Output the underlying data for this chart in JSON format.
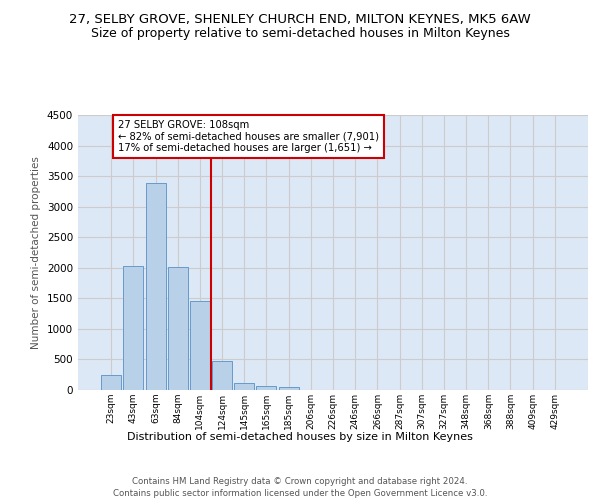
{
  "title": "27, SELBY GROVE, SHENLEY CHURCH END, MILTON KEYNES, MK5 6AW",
  "subtitle": "Size of property relative to semi-detached houses in Milton Keynes",
  "xlabel": "Distribution of semi-detached houses by size in Milton Keynes",
  "ylabel": "Number of semi-detached properties",
  "footer1": "Contains HM Land Registry data © Crown copyright and database right 2024.",
  "footer2": "Contains public sector information licensed under the Open Government Licence v3.0.",
  "bar_labels": [
    "23sqm",
    "43sqm",
    "63sqm",
    "84sqm",
    "104sqm",
    "124sqm",
    "145sqm",
    "165sqm",
    "185sqm",
    "206sqm",
    "226sqm",
    "246sqm",
    "266sqm",
    "287sqm",
    "307sqm",
    "327sqm",
    "348sqm",
    "368sqm",
    "388sqm",
    "409sqm",
    "429sqm"
  ],
  "bar_values": [
    250,
    2030,
    3380,
    2020,
    1460,
    480,
    110,
    60,
    50,
    0,
    0,
    0,
    0,
    0,
    0,
    0,
    0,
    0,
    0,
    0,
    0
  ],
  "bar_color": "#b8d0e8",
  "bar_edge_color": "#6699cc",
  "annotation_line1": "27 SELBY GROVE: 108sqm",
  "annotation_line2": "← 82% of semi-detached houses are smaller (7,901)",
  "annotation_line3": "17% of semi-detached houses are larger (1,651) →",
  "vline_x": 4.5,
  "vline_color": "#cc0000",
  "box_color": "#cc0000",
  "ylim": [
    0,
    4500
  ],
  "yticks": [
    0,
    500,
    1000,
    1500,
    2000,
    2500,
    3000,
    3500,
    4000,
    4500
  ],
  "grid_color": "#cccccc",
  "bg_color": "#dce8f5",
  "title_fontsize": 9.5,
  "subtitle_fontsize": 9
}
